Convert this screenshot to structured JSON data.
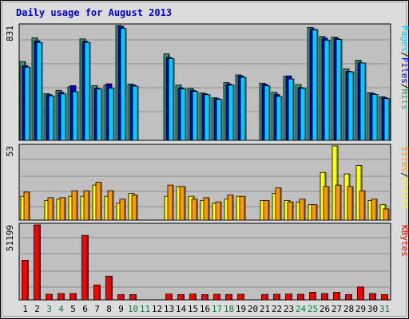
{
  "chart_data": {
    "type": "bar",
    "title": "Daily usage for August 2013",
    "days": [
      "1",
      "2",
      "3",
      "4",
      "5",
      "6",
      "7",
      "8",
      "9",
      "10",
      "11",
      "12",
      "13",
      "14",
      "15",
      "16",
      "17",
      "18",
      "19",
      "20",
      "21",
      "22",
      "23",
      "24",
      "25",
      "26",
      "27",
      "28",
      "29",
      "30",
      "31"
    ],
    "weekend_days": [
      "3",
      "4",
      "10",
      "11",
      "17",
      "18",
      "24",
      "25",
      "31"
    ],
    "colors": {
      "hits": "#339966",
      "files": "#0000cc",
      "pages": "#00ccff",
      "visits": "#ffff00",
      "sites": "#ff9900",
      "kbytes": "#ff0000",
      "weekday_label": "#000000",
      "weekend_label": "#008040",
      "panel_bg": "#c0c0c0",
      "frame_bg": "#dcdcdc",
      "title": "#0000cc"
    },
    "panels": [
      {
        "id": "top",
        "max_label": "831",
        "ymax": 831,
        "legend": [
          {
            "text": "Pages",
            "color": "#00ccff"
          },
          {
            "text": "/",
            "color": "#000000"
          },
          {
            "text": "Files",
            "color": "#0000cc"
          },
          {
            "text": "/",
            "color": "#000000"
          },
          {
            "text": "Hits",
            "color": "#339966"
          }
        ],
        "series": [
          {
            "key": "hits",
            "name": "Hits",
            "color": "#339966",
            "values": [
              570,
              742,
              338,
              362,
              388,
              734,
              396,
              400,
              831,
              408,
              0,
              0,
              626,
              400,
              376,
              342,
              308,
              418,
              474,
              0,
              414,
              348,
              464,
              404,
              817,
              752,
              748,
              518,
              580,
              345,
              316
            ]
          },
          {
            "key": "files",
            "name": "Files",
            "color": "#0000cc",
            "values": [
              540,
              720,
              330,
              348,
              396,
              716,
              378,
              410,
              825,
              400,
              0,
              0,
              600,
              380,
              362,
              336,
              302,
              408,
              466,
              0,
              405,
              332,
              466,
              382,
              807,
              740,
              738,
              500,
              562,
              338,
              310
            ]
          },
          {
            "key": "pages",
            "name": "Pages",
            "color": "#00ccff",
            "values": [
              530,
              708,
              322,
              336,
              352,
              708,
              372,
              378,
              810,
              392,
              0,
              0,
              592,
              372,
              354,
              330,
              296,
              400,
              456,
              0,
              394,
              318,
              444,
              376,
              800,
              724,
              730,
              496,
              560,
              332,
              302
            ]
          }
        ]
      },
      {
        "id": "mid",
        "max_label": "53",
        "ymax": 53,
        "legend": [
          {
            "text": "Sites",
            "color": "#ff9900"
          },
          {
            "text": "/",
            "color": "#000000"
          },
          {
            "text": "Visits",
            "color": "#ffff00"
          }
        ],
        "series": [
          {
            "key": "visits",
            "name": "Visits",
            "color": "#ffff00",
            "values": [
              17,
              0,
              14,
              15,
              17,
              17,
              25,
              17,
              12,
              19,
              0,
              0,
              17,
              24,
              17,
              14,
              12,
              15,
              17,
              0,
              14,
              19,
              14,
              13,
              11,
              34,
              53,
              33,
              39,
              14,
              11
            ]
          },
          {
            "key": "sites",
            "name": "Sites",
            "color": "#ff9900",
            "values": [
              20,
              0,
              16,
              16,
              21,
              21,
              27,
              21,
              15,
              18,
              0,
              0,
              25,
              24,
              15,
              16,
              13,
              18,
              17,
              0,
              14,
              23,
              13,
              15,
              11,
              24,
              25,
              24,
              21,
              15,
              8
            ]
          }
        ]
      },
      {
        "id": "bottom",
        "max_label": "51199",
        "ymax": 51199,
        "legend": [
          {
            "text": "KBytes",
            "color": "#ff0000"
          }
        ],
        "series": [
          {
            "key": "kbytes",
            "name": "KBytes",
            "color": "#ff0000",
            "values": [
              27000,
              51199,
              3800,
              4300,
              4300,
              44000,
              10200,
              16200,
              3600,
              3600,
              0,
              0,
              4000,
              3600,
              4000,
              3600,
              3800,
              3700,
              3800,
              0,
              3700,
              3800,
              3900,
              3800,
              5200,
              4300,
              5200,
              3600,
              8800,
              4300,
              3600
            ]
          }
        ]
      }
    ]
  }
}
